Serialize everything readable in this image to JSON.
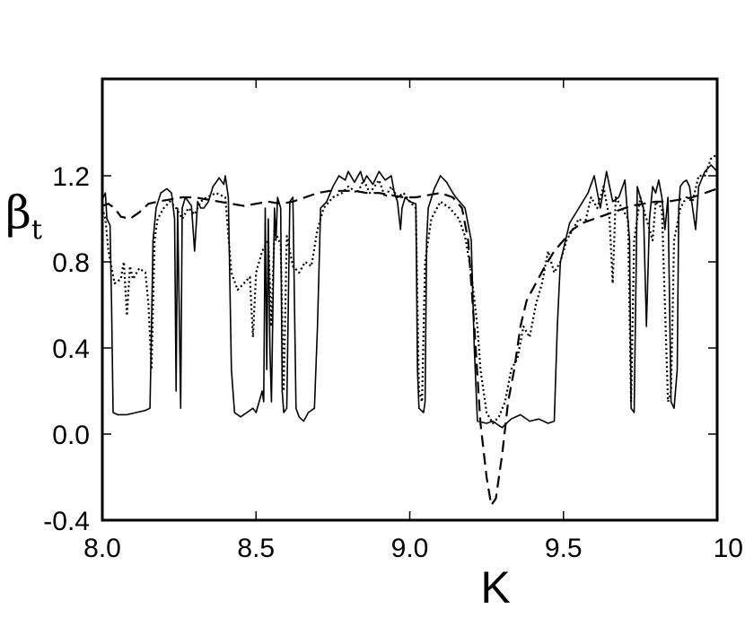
{
  "chart_data": {
    "type": "line",
    "title": "",
    "xlabel": "K",
    "ylabel_main": "β",
    "ylabel_sub": "t",
    "xlim": [
      8.0,
      10.0
    ],
    "ylim": [
      -0.4,
      1.65
    ],
    "x_ticks": [
      8.0,
      8.5,
      9.0,
      9.5,
      10.0
    ],
    "x_tick_labels": [
      "8.0",
      "8.5",
      "9.0",
      "9.5",
      "10"
    ],
    "y_ticks": [
      -0.4,
      0.0,
      0.4,
      0.8,
      1.2
    ],
    "y_tick_labels": [
      "-0.4",
      "0.0",
      "0.4",
      "0.8",
      "1.2"
    ],
    "grid": false,
    "legend": "none",
    "series": [
      {
        "style": "solid",
        "points": [
          [
            8.0,
            1.09
          ],
          [
            8.01,
            1.12
          ],
          [
            8.015,
            1.0
          ],
          [
            8.025,
            0.97
          ],
          [
            8.03,
            0.6
          ],
          [
            8.035,
            0.1
          ],
          [
            8.05,
            0.09
          ],
          [
            8.08,
            0.09
          ],
          [
            8.11,
            0.1
          ],
          [
            8.14,
            0.11
          ],
          [
            8.155,
            0.12
          ],
          [
            8.16,
            0.5
          ],
          [
            8.165,
            0.9
          ],
          [
            8.175,
            1.05
          ],
          [
            8.19,
            1.12
          ],
          [
            8.21,
            1.14
          ],
          [
            8.225,
            1.12
          ],
          [
            8.235,
            1.0
          ],
          [
            8.24,
            0.2
          ],
          [
            8.245,
            1.05
          ],
          [
            8.255,
            0.12
          ],
          [
            8.26,
            1.05
          ],
          [
            8.27,
            1.1
          ],
          [
            8.29,
            1.06
          ],
          [
            8.3,
            0.85
          ],
          [
            8.31,
            1.08
          ],
          [
            8.32,
            1.05
          ],
          [
            8.33,
            1.05
          ],
          [
            8.345,
            1.08
          ],
          [
            8.36,
            1.15
          ],
          [
            8.38,
            1.19
          ],
          [
            8.395,
            1.16
          ],
          [
            8.4,
            1.2
          ],
          [
            8.41,
            1.1
          ],
          [
            8.42,
            0.3
          ],
          [
            8.43,
            0.1
          ],
          [
            8.45,
            0.08
          ],
          [
            8.47,
            0.1
          ],
          [
            8.49,
            0.12
          ],
          [
            8.5,
            0.1
          ],
          [
            8.51,
            0.15
          ],
          [
            8.52,
            0.2
          ],
          [
            8.525,
            0.15
          ],
          [
            8.53,
            1.05
          ],
          [
            8.535,
            0.3
          ],
          [
            8.54,
            1.0
          ],
          [
            8.545,
            0.4
          ],
          [
            8.55,
            0.15
          ],
          [
            8.56,
            1.05
          ],
          [
            8.565,
            0.9
          ],
          [
            8.57,
            1.1
          ],
          [
            8.58,
            1.05
          ],
          [
            8.585,
            0.2
          ],
          [
            8.59,
            0.1
          ],
          [
            8.6,
            0.12
          ],
          [
            8.61,
            1.08
          ],
          [
            8.62,
            1.1
          ],
          [
            8.63,
            0.12
          ],
          [
            8.64,
            0.08
          ],
          [
            8.655,
            0.06
          ],
          [
            8.67,
            0.1
          ],
          [
            8.69,
            0.12
          ],
          [
            8.7,
            0.5
          ],
          [
            8.71,
            1.05
          ],
          [
            8.73,
            1.08
          ],
          [
            8.75,
            1.15
          ],
          [
            8.77,
            1.2
          ],
          [
            8.79,
            1.18
          ],
          [
            8.8,
            1.22
          ],
          [
            8.82,
            1.17
          ],
          [
            8.84,
            1.22
          ],
          [
            8.85,
            1.17
          ],
          [
            8.86,
            1.2
          ],
          [
            8.88,
            1.16
          ],
          [
            8.9,
            1.22
          ],
          [
            8.92,
            1.18
          ],
          [
            8.94,
            1.2
          ],
          [
            8.95,
            1.12
          ],
          [
            8.96,
            1.08
          ],
          [
            8.97,
            0.95
          ],
          [
            8.975,
            1.05
          ],
          [
            8.985,
            1.1
          ],
          [
            9.0,
            1.08
          ],
          [
            9.02,
            1.07
          ],
          [
            9.025,
            0.3
          ],
          [
            9.03,
            0.12
          ],
          [
            9.045,
            0.1
          ],
          [
            9.05,
            0.15
          ],
          [
            9.055,
            0.9
          ],
          [
            9.06,
            1.05
          ],
          [
            9.08,
            1.14
          ],
          [
            9.1,
            1.2
          ],
          [
            9.12,
            1.17
          ],
          [
            9.14,
            1.12
          ],
          [
            9.15,
            1.1
          ],
          [
            9.18,
            1.05
          ],
          [
            9.2,
            0.9
          ],
          [
            9.21,
            0.4
          ],
          [
            9.22,
            0.06
          ],
          [
            9.25,
            0.05
          ],
          [
            9.27,
            0.06
          ],
          [
            9.3,
            0.03
          ],
          [
            9.33,
            0.07
          ],
          [
            9.36,
            0.09
          ],
          [
            9.39,
            0.06
          ],
          [
            9.42,
            0.07
          ],
          [
            9.45,
            0.05
          ],
          [
            9.47,
            0.06
          ],
          [
            9.48,
            0.5
          ],
          [
            9.49,
            0.8
          ],
          [
            9.52,
            0.98
          ],
          [
            9.55,
            1.05
          ],
          [
            9.58,
            1.12
          ],
          [
            9.6,
            1.2
          ],
          [
            9.62,
            1.05
          ],
          [
            9.64,
            1.22
          ],
          [
            9.66,
            1.08
          ],
          [
            9.68,
            1.1
          ],
          [
            9.7,
            1.18
          ],
          [
            9.715,
            0.9
          ],
          [
            9.72,
            0.12
          ],
          [
            9.73,
            0.1
          ],
          [
            9.74,
            1.15
          ],
          [
            9.76,
            1.05
          ],
          [
            9.77,
            0.5
          ],
          [
            9.78,
            1.0
          ],
          [
            9.79,
            1.15
          ],
          [
            9.8,
            1.12
          ],
          [
            9.81,
            1.18
          ],
          [
            9.82,
            1.1
          ],
          [
            9.83,
            0.95
          ],
          [
            9.84,
            1.1
          ],
          [
            9.85,
            0.15
          ],
          [
            9.86,
            0.12
          ],
          [
            9.87,
            0.3
          ],
          [
            9.875,
            1.05
          ],
          [
            9.88,
            1.15
          ],
          [
            9.89,
            1.17
          ],
          [
            9.9,
            1.18
          ],
          [
            9.91,
            1.15
          ],
          [
            9.93,
            0.95
          ],
          [
            9.94,
            1.15
          ],
          [
            9.96,
            1.22
          ],
          [
            9.98,
            1.25
          ],
          [
            10.0,
            1.22
          ]
        ]
      },
      {
        "style": "dotted",
        "points": [
          [
            8.0,
            1.05
          ],
          [
            8.01,
            1.0
          ],
          [
            8.02,
            0.85
          ],
          [
            8.04,
            0.7
          ],
          [
            8.06,
            0.72
          ],
          [
            8.07,
            0.8
          ],
          [
            8.08,
            0.55
          ],
          [
            8.09,
            0.78
          ],
          [
            8.1,
            0.72
          ],
          [
            8.12,
            0.77
          ],
          [
            8.14,
            0.75
          ],
          [
            8.15,
            0.6
          ],
          [
            8.16,
            0.3
          ],
          [
            8.17,
            0.9
          ],
          [
            8.18,
            1.0
          ],
          [
            8.2,
            1.05
          ],
          [
            8.22,
            1.08
          ],
          [
            8.24,
            1.05
          ],
          [
            8.26,
            1.0
          ],
          [
            8.28,
            1.05
          ],
          [
            8.3,
            1.02
          ],
          [
            8.32,
            1.08
          ],
          [
            8.34,
            1.1
          ],
          [
            8.37,
            1.12
          ],
          [
            8.4,
            1.1
          ],
          [
            8.42,
            0.75
          ],
          [
            8.44,
            0.67
          ],
          [
            8.46,
            0.7
          ],
          [
            8.48,
            0.73
          ],
          [
            8.49,
            0.45
          ],
          [
            8.5,
            0.75
          ],
          [
            8.52,
            0.85
          ],
          [
            8.54,
            0.9
          ],
          [
            8.55,
            0.5
          ],
          [
            8.56,
            0.95
          ],
          [
            8.58,
            0.88
          ],
          [
            8.59,
            0.2
          ],
          [
            8.6,
            0.92
          ],
          [
            8.62,
            0.78
          ],
          [
            8.64,
            0.75
          ],
          [
            8.66,
            0.8
          ],
          [
            8.68,
            0.78
          ],
          [
            8.7,
            0.95
          ],
          [
            8.72,
            1.05
          ],
          [
            8.75,
            1.1
          ],
          [
            8.78,
            1.12
          ],
          [
            8.8,
            1.15
          ],
          [
            8.83,
            1.12
          ],
          [
            8.85,
            1.18
          ],
          [
            8.87,
            1.12
          ],
          [
            8.9,
            1.18
          ],
          [
            8.92,
            1.1
          ],
          [
            8.94,
            1.15
          ],
          [
            8.96,
            1.1
          ],
          [
            8.98,
            1.12
          ],
          [
            9.0,
            1.08
          ],
          [
            9.02,
            1.05
          ],
          [
            9.03,
            0.2
          ],
          [
            9.04,
            0.15
          ],
          [
            9.05,
            0.8
          ],
          [
            9.07,
            1.0
          ],
          [
            9.1,
            1.08
          ],
          [
            9.13,
            1.05
          ],
          [
            9.16,
            1.0
          ],
          [
            9.18,
            0.92
          ],
          [
            9.2,
            0.75
          ],
          [
            9.22,
            0.5
          ],
          [
            9.23,
            0.3
          ],
          [
            9.25,
            0.1
          ],
          [
            9.27,
            0.05
          ],
          [
            9.29,
            0.08
          ],
          [
            9.31,
            0.15
          ],
          [
            9.33,
            0.3
          ],
          [
            9.35,
            0.35
          ],
          [
            9.37,
            0.5
          ],
          [
            9.39,
            0.45
          ],
          [
            9.41,
            0.6
          ],
          [
            9.43,
            0.7
          ],
          [
            9.45,
            0.85
          ],
          [
            9.47,
            0.75
          ],
          [
            9.49,
            0.8
          ],
          [
            9.51,
            0.9
          ],
          [
            9.53,
            0.95
          ],
          [
            9.55,
            1.0
          ],
          [
            9.57,
            0.98
          ],
          [
            9.59,
            1.1
          ],
          [
            9.61,
            1.05
          ],
          [
            9.63,
            1.15
          ],
          [
            9.65,
            1.0
          ],
          [
            9.66,
            0.7
          ],
          [
            9.67,
            1.1
          ],
          [
            9.69,
            1.05
          ],
          [
            9.71,
            1.0
          ],
          [
            9.72,
            0.15
          ],
          [
            9.73,
            0.9
          ],
          [
            9.75,
            1.1
          ],
          [
            9.77,
            1.0
          ],
          [
            9.79,
            0.9
          ],
          [
            9.8,
            1.08
          ],
          [
            9.82,
            1.05
          ],
          [
            9.84,
            0.15
          ],
          [
            9.85,
            0.2
          ],
          [
            9.86,
            0.9
          ],
          [
            9.88,
            1.05
          ],
          [
            9.9,
            1.1
          ],
          [
            9.92,
            1.08
          ],
          [
            9.94,
            1.2
          ],
          [
            9.96,
            1.2
          ],
          [
            9.98,
            1.28
          ],
          [
            10.0,
            1.3
          ]
        ]
      },
      {
        "style": "dashed",
        "points": [
          [
            8.0,
            1.06
          ],
          [
            8.02,
            1.07
          ],
          [
            8.04,
            1.05
          ],
          [
            8.06,
            1.01
          ],
          [
            8.09,
            1.0
          ],
          [
            8.12,
            1.03
          ],
          [
            8.15,
            1.07
          ],
          [
            8.18,
            1.08
          ],
          [
            8.22,
            1.09
          ],
          [
            8.26,
            1.1
          ],
          [
            8.3,
            1.1
          ],
          [
            8.34,
            1.09
          ],
          [
            8.38,
            1.08
          ],
          [
            8.42,
            1.07
          ],
          [
            8.46,
            1.06
          ],
          [
            8.5,
            1.07
          ],
          [
            8.54,
            1.08
          ],
          [
            8.58,
            1.07
          ],
          [
            8.62,
            1.08
          ],
          [
            8.66,
            1.1
          ],
          [
            8.7,
            1.12
          ],
          [
            8.74,
            1.13
          ],
          [
            8.78,
            1.13
          ],
          [
            8.82,
            1.13
          ],
          [
            8.86,
            1.12
          ],
          [
            8.9,
            1.12
          ],
          [
            8.94,
            1.11
          ],
          [
            8.98,
            1.1
          ],
          [
            9.02,
            1.1
          ],
          [
            9.06,
            1.11
          ],
          [
            9.1,
            1.12
          ],
          [
            9.14,
            1.1
          ],
          [
            9.17,
            1.05
          ],
          [
            9.19,
            0.9
          ],
          [
            9.21,
            0.5
          ],
          [
            9.23,
            0.05
          ],
          [
            9.25,
            -0.2
          ],
          [
            9.265,
            -0.33
          ],
          [
            9.28,
            -0.3
          ],
          [
            9.3,
            -0.1
          ],
          [
            9.32,
            0.15
          ],
          [
            9.34,
            0.3
          ],
          [
            9.36,
            0.5
          ],
          [
            9.38,
            0.62
          ],
          [
            9.41,
            0.7
          ],
          [
            9.44,
            0.78
          ],
          [
            9.47,
            0.85
          ],
          [
            9.5,
            0.9
          ],
          [
            9.53,
            0.95
          ],
          [
            9.56,
            0.98
          ],
          [
            9.6,
            1.0
          ],
          [
            9.64,
            1.02
          ],
          [
            9.68,
            1.04
          ],
          [
            9.72,
            1.06
          ],
          [
            9.76,
            1.07
          ],
          [
            9.8,
            1.08
          ],
          [
            9.84,
            1.08
          ],
          [
            9.88,
            1.09
          ],
          [
            9.92,
            1.1
          ],
          [
            9.96,
            1.12
          ],
          [
            10.0,
            1.14
          ]
        ]
      }
    ]
  }
}
